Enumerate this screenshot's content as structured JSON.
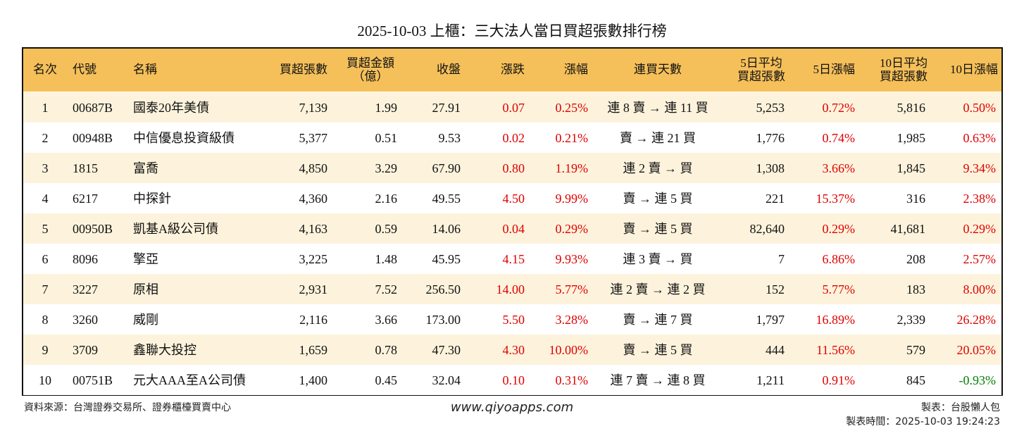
{
  "title": "2025-10-03 上櫃：三大法人當日買超張數排行榜",
  "table": {
    "header": [
      [
        "名次"
      ],
      [
        "代號"
      ],
      [
        "名稱"
      ],
      [
        "買超張數"
      ],
      [
        "買超金額",
        "（億）"
      ],
      [
        "收盤"
      ],
      [
        "漲跌"
      ],
      [
        "漲幅"
      ],
      [
        "連買天數"
      ],
      [
        "5日平均",
        "買超張數"
      ],
      [
        "5日漲幅"
      ],
      [
        "10日平均",
        "買超張數"
      ],
      [
        "10日漲幅"
      ]
    ],
    "rows": [
      [
        "1",
        "00687B",
        "國泰20年美債",
        "7,139",
        "1.99",
        "27.91",
        "0.07",
        "0.25%",
        "連 8 賣 → 連 11 買",
        "5,253",
        "0.72%",
        "5,816",
        "0.50%"
      ],
      [
        "2",
        "00948B",
        "中信優息投資級債",
        "5,377",
        "0.51",
        "9.53",
        "0.02",
        "0.21%",
        "賣 → 連 21 買",
        "1,776",
        "0.74%",
        "1,985",
        "0.63%"
      ],
      [
        "3",
        "1815",
        "富喬",
        "4,850",
        "3.29",
        "67.90",
        "0.80",
        "1.19%",
        "連 2 賣 → 買",
        "1,308",
        "3.66%",
        "1,845",
        "9.34%"
      ],
      [
        "4",
        "6217",
        "中探針",
        "4,360",
        "2.16",
        "49.55",
        "4.50",
        "9.99%",
        "賣 → 連 5 買",
        "221",
        "15.37%",
        "316",
        "2.38%"
      ],
      [
        "5",
        "00950B",
        "凱基A級公司債",
        "4,163",
        "0.59",
        "14.06",
        "0.04",
        "0.29%",
        "賣 → 連 5 買",
        "82,640",
        "0.29%",
        "41,681",
        "0.29%"
      ],
      [
        "6",
        "8096",
        "擎亞",
        "3,225",
        "1.48",
        "45.95",
        "4.15",
        "9.93%",
        "連 3 賣 → 買",
        "7",
        "6.86%",
        "208",
        "2.57%"
      ],
      [
        "7",
        "3227",
        "原相",
        "2,931",
        "7.52",
        "256.50",
        "14.00",
        "5.77%",
        "連 2 賣 → 連 2 買",
        "152",
        "5.77%",
        "183",
        "8.00%"
      ],
      [
        "8",
        "3260",
        "威剛",
        "2,116",
        "3.66",
        "173.00",
        "5.50",
        "3.28%",
        "賣 → 連 7 買",
        "1,797",
        "16.89%",
        "2,339",
        "26.28%"
      ],
      [
        "9",
        "3709",
        "鑫聯大投控",
        "1,659",
        "0.78",
        "47.30",
        "4.30",
        "10.00%",
        "賣 → 連 5 買",
        "444",
        "11.56%",
        "579",
        "20.05%"
      ],
      [
        "10",
        "00751B",
        "元大AAA至A公司債",
        "1,400",
        "0.45",
        "32.04",
        "0.10",
        "0.31%",
        "連 7 賣 → 連 8 買",
        "1,211",
        "0.91%",
        "845",
        "-0.93%"
      ]
    ]
  },
  "footer": {
    "source": "資料來源：台灣證券交易所、證券櫃檯買賣中心",
    "site": "www.qiyoapps.com",
    "maker": "製表：台股懶人包",
    "time": "製表時間：2025-10-03 19:24:23"
  }
}
